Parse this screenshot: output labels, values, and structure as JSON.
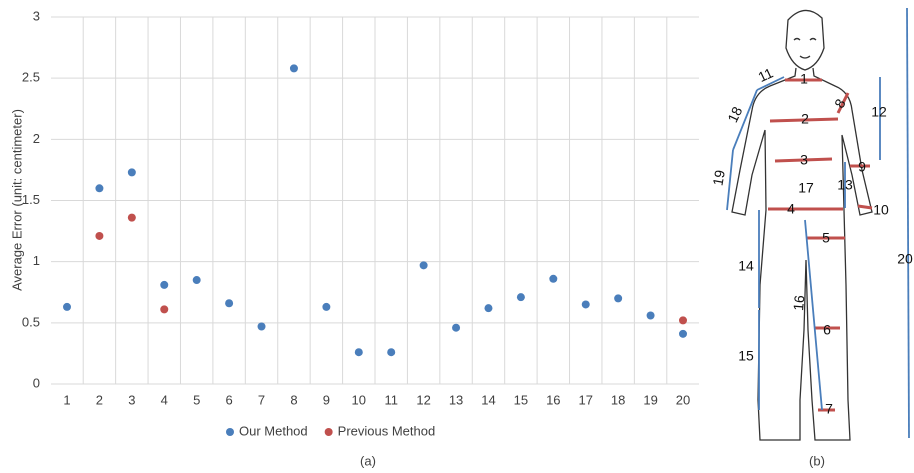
{
  "chart_data": {
    "type": "scatter",
    "y_label": "Average Error (unit: centimeter)",
    "caption": "(a)",
    "categories": [
      "1",
      "2",
      "3",
      "4",
      "5",
      "6",
      "7",
      "8",
      "9",
      "10",
      "11",
      "12",
      "13",
      "14",
      "15",
      "16",
      "17",
      "18",
      "19",
      "20"
    ],
    "series": [
      {
        "name": "Our Method",
        "color": "#4a7ebb",
        "values": [
          0.63,
          1.6,
          1.73,
          0.81,
          0.85,
          0.66,
          0.47,
          2.58,
          0.63,
          0.26,
          0.26,
          0.97,
          0.46,
          0.62,
          0.71,
          0.86,
          0.65,
          0.7,
          0.56,
          0.41
        ]
      },
      {
        "name": "Previous Method",
        "color": "#c0504d",
        "values": [
          null,
          1.21,
          1.36,
          0.61,
          null,
          null,
          null,
          null,
          null,
          null,
          null,
          null,
          null,
          null,
          null,
          null,
          null,
          null,
          null,
          0.52
        ]
      }
    ],
    "ylim": [
      0,
      3
    ],
    "yticks": [
      0,
      0.5,
      1,
      1.5,
      2,
      2.5,
      3
    ],
    "grid": true
  },
  "diagram": {
    "caption": "(b)",
    "labels": [
      "1",
      "2",
      "3",
      "4",
      "5",
      "6",
      "7",
      "8",
      "9",
      "10",
      "11",
      "12",
      "13",
      "14",
      "15",
      "16",
      "17",
      "18",
      "19",
      "20"
    ]
  }
}
